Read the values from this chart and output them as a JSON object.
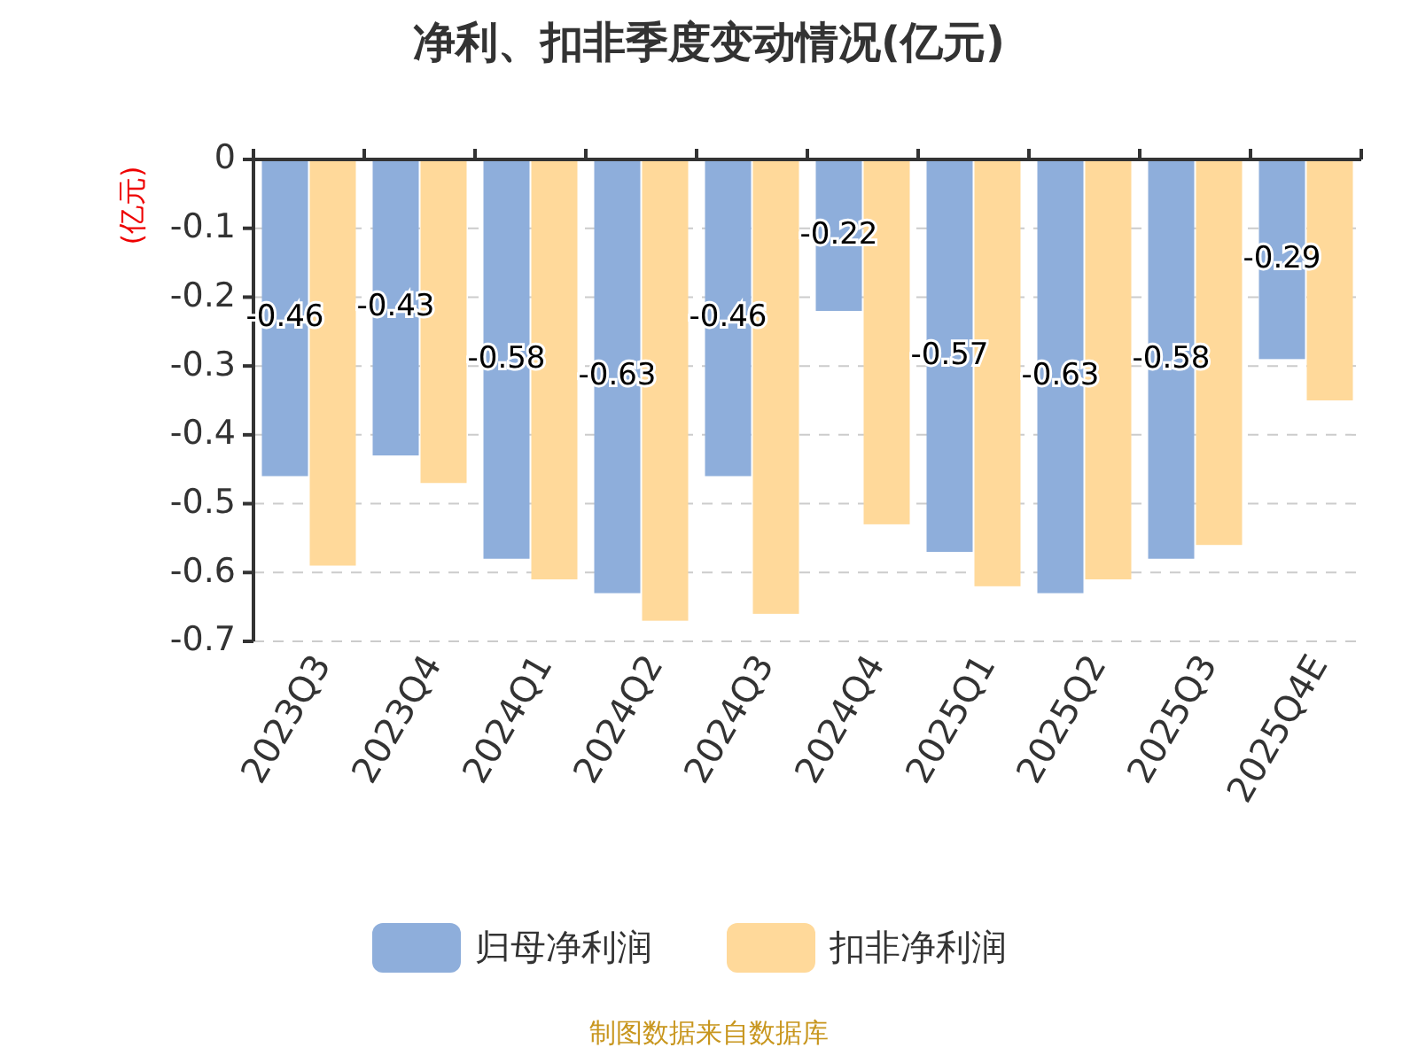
{
  "chart_data": {
    "type": "bar",
    "title": "净利、扣非季度变动情况(亿元)",
    "ylabel": "(亿元)",
    "categories": [
      "2023Q3",
      "2023Q4",
      "2024Q1",
      "2024Q2",
      "2024Q3",
      "2024Q4",
      "2025Q1",
      "2025Q2",
      "2025Q3",
      "2025Q4E"
    ],
    "series": [
      {
        "name": "归母净利润",
        "color": "#8eaedb",
        "values": [
          -0.46,
          -0.43,
          -0.58,
          -0.63,
          -0.46,
          -0.22,
          -0.57,
          -0.63,
          -0.58,
          -0.29
        ],
        "value_labels": [
          "-0.46",
          "-0.43",
          "-0.58",
          "-0.63",
          "-0.46",
          "-0.22",
          "-0.57",
          "-0.63",
          "-0.58",
          "-0.29"
        ]
      },
      {
        "name": "扣非净利润",
        "color": "#ffd99a",
        "values": [
          -0.59,
          -0.47,
          -0.61,
          -0.67,
          -0.66,
          -0.53,
          -0.62,
          -0.61,
          -0.56,
          -0.35
        ]
      }
    ],
    "ylim": [
      -0.7,
      0
    ],
    "yticks": [
      0,
      -0.1,
      -0.2,
      -0.3,
      -0.4,
      -0.5,
      -0.6,
      -0.7
    ],
    "grid": "y",
    "legend": "bottom",
    "annotations": [
      "制图数据来自数据库"
    ]
  }
}
